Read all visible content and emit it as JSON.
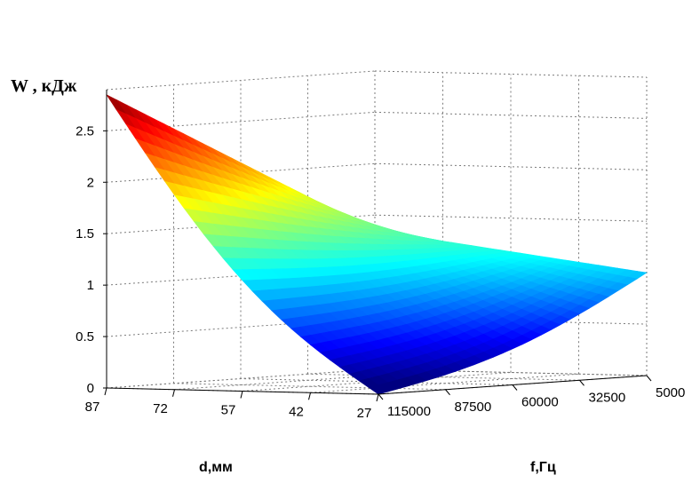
{
  "chart_data": {
    "type": "surface",
    "title": "",
    "zlabel": "W , кДж",
    "ylabel": "d,мм",
    "xlabel": "f,Гц",
    "zlim": [
      0,
      2.9
    ],
    "z_ticks": [
      "0",
      "0.5",
      "1",
      "1.5",
      "2",
      "2.5"
    ],
    "d_ticks": [
      "87",
      "72",
      "57",
      "42",
      "27"
    ],
    "f_ticks": [
      "115000",
      "87500",
      "60000",
      "32500",
      "5000"
    ],
    "d_range": [
      27,
      87
    ],
    "f_range": [
      5000,
      115000
    ],
    "corner_values": [
      {
        "d": 87,
        "f": 115000,
        "W": 2.85
      },
      {
        "d": 27,
        "f": 115000,
        "W": 0.0
      },
      {
        "d": 27,
        "f": 5000,
        "W": 1.0
      },
      {
        "d": 87,
        "f": 5000,
        "W": 1.35
      }
    ],
    "grid": true,
    "colormap": "jet"
  }
}
